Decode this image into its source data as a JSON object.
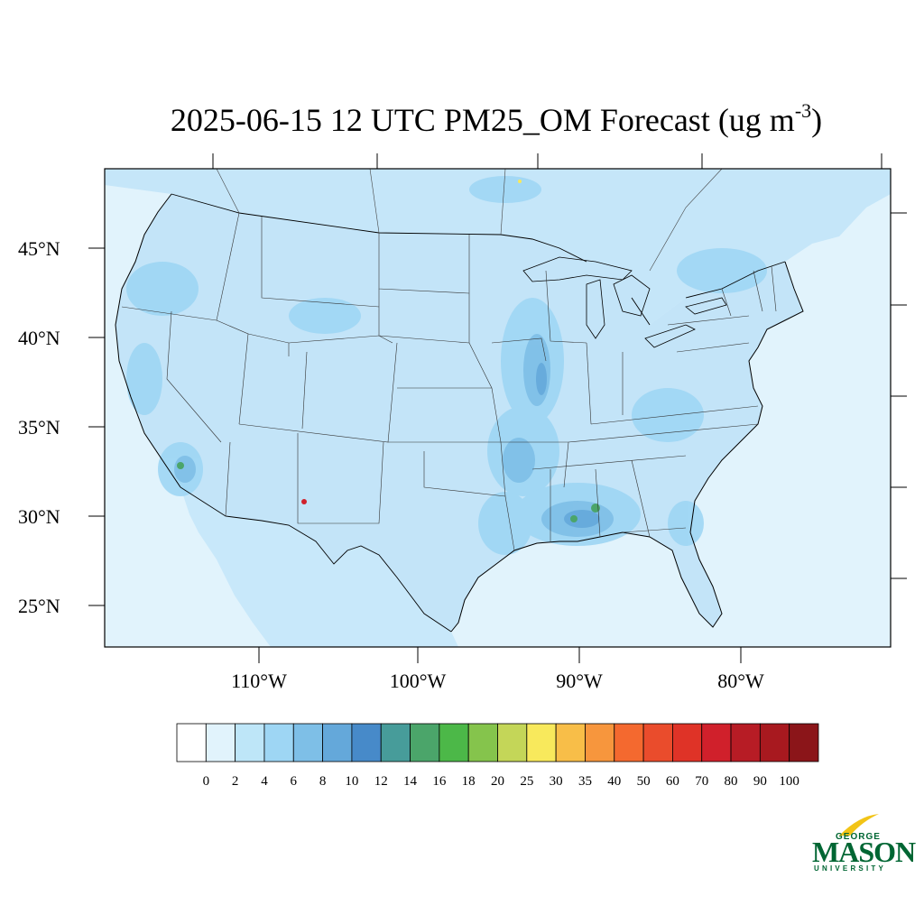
{
  "title": {
    "main": "2025-06-15 12 UTC PM25_OM Forecast (ug m",
    "sup": "-3",
    "close": ")"
  },
  "map": {
    "lat_labels": [
      "45°N",
      "40°N",
      "35°N",
      "30°N",
      "25°N"
    ],
    "lon_labels": [
      "110°W",
      "100°W",
      "90°W",
      "80°W"
    ],
    "ocean_color": "#e1f3fc",
    "land_base_color": "#c8e8fa"
  },
  "colorbar": {
    "levels": [
      "0",
      "2",
      "4",
      "6",
      "8",
      "10",
      "12",
      "14",
      "16",
      "18",
      "20",
      "25",
      "30",
      "35",
      "40",
      "50",
      "60",
      "70",
      "80",
      "90",
      "100"
    ],
    "colors": [
      "#ffffff",
      "#e1f3fc",
      "#bee6f8",
      "#9ed6f4",
      "#7ebfe7",
      "#64a8da",
      "#478ac9",
      "#479c9a",
      "#4ba56a",
      "#4cb848",
      "#85c44c",
      "#c4d658",
      "#f8e95c",
      "#f8be48",
      "#f7963d",
      "#f4692f",
      "#ea4c2c",
      "#df3327",
      "#d0202b",
      "#b71c25",
      "#a8191f",
      "#8b1519"
    ]
  },
  "logo": {
    "top": "GEORGE",
    "main": "MASON",
    "bottom": "UNIVERSITY"
  }
}
